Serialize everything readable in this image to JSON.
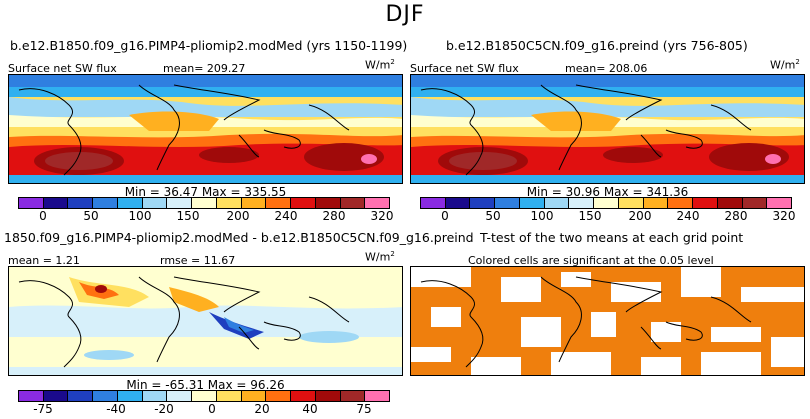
{
  "season": "DJF",
  "panels": {
    "p1": {
      "title": "b.e12.B1850.f09_g16.PIMP4-pliomip2.modMed (yrs 1150-1199)",
      "variable": "Surface net SW flux",
      "mean": "mean=  209.27",
      "unit": "W/m",
      "min_max": "Min =   36.47  Max =  335.55"
    },
    "p2": {
      "title": "b.e12.B1850C5CN.f09_g16.preind (yrs 756-805)",
      "variable": "Surface net SW flux",
      "mean": "mean=  208.06",
      "unit": "W/m",
      "min_max": "Min =   30.96  Max =  341.36"
    },
    "p3": {
      "title": "1850.f09_g16.PIMP4-pliomip2.modMed - b.e12.B1850C5CN.f09_g16.preind",
      "mean": "mean =   1.21",
      "rmse": "rmse =  11.67",
      "unit": "W/m",
      "min_max": "Min =  -65.31  Max =  96.26"
    },
    "p4": {
      "title": "T-test of the two means at each grid point",
      "subtitle": "Colored cells are significant at the 0.05 level"
    }
  },
  "colorbar_abs": {
    "colors": [
      "#8a2be2",
      "#1a0a8c",
      "#1f3fbf",
      "#2f7fe0",
      "#30b0f0",
      "#9fd8f5",
      "#d7f0fa",
      "#ffffd0",
      "#ffe060",
      "#ffb020",
      "#ff7010",
      "#e01010",
      "#a00a0a",
      "#a02828",
      "#ff70b0"
    ],
    "labels": [
      "0",
      "50",
      "100",
      "150",
      "200",
      "240",
      "280",
      "320"
    ]
  },
  "colorbar_diff": {
    "colors": [
      "#8a2be2",
      "#1a0a8c",
      "#1f3fbf",
      "#2f7fe0",
      "#30b0f0",
      "#9fd8f5",
      "#d7f0fa",
      "#ffffd0",
      "#ffe060",
      "#ffb020",
      "#ff7010",
      "#e01010",
      "#a00a0a",
      "#a02828",
      "#ff70b0"
    ],
    "labels": [
      "-75",
      "-40",
      "-20",
      "0",
      "20",
      "40",
      "75"
    ]
  },
  "colors": {
    "significant": "#ef7f0d"
  }
}
